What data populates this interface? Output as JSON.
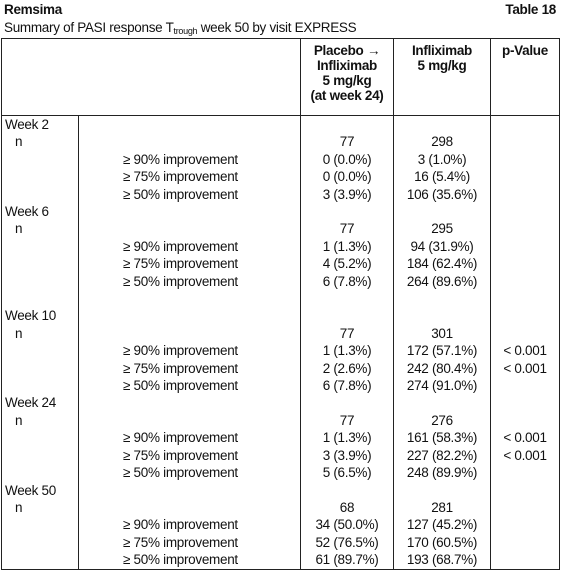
{
  "header": {
    "title": "Remsima",
    "table_number": "Table 18",
    "subtitle": {
      "before": "Summary of PASI response T",
      "subscript": "trough",
      "after": " week 50 by visit EXPRESS"
    }
  },
  "table": {
    "columns": [
      [
        "Placebo →",
        "Infliximab",
        "5 mg/kg",
        "(at week 24)"
      ],
      [
        "Infliximab",
        "5 mg/kg"
      ],
      [
        "p-Value"
      ]
    ],
    "groups": [
      {
        "label": "Week 2",
        "n_label": "n",
        "n": [
          "77",
          "298"
        ],
        "rows": [
          {
            "label": "≥ 90% improvement",
            "placebo": "0 (0.0%)",
            "infliximab": "3 (1.0%)"
          },
          {
            "label": "≥ 75% improvement",
            "placebo": "0 (0.0%)",
            "infliximab": "16 (5.4%)"
          },
          {
            "label": "≥ 50% improvement",
            "placebo": "3 (3.9%)",
            "infliximab": "106 (35.6%)"
          }
        ]
      },
      {
        "label": "Week 6",
        "n_label": "n",
        "n": [
          "77",
          "295"
        ],
        "rows": [
          {
            "label": "≥ 90% improvement",
            "placebo": "1 (1.3%)",
            "infliximab": "94 (31.9%)"
          },
          {
            "label": "≥ 75% improvement",
            "placebo": "4 (5.2%)",
            "infliximab": "184 (62.4%)"
          },
          {
            "label": "≥ 50% improvement",
            "placebo": "6 (7.8%)",
            "infliximab": "264 (89.6%)"
          }
        ]
      },
      {
        "label": "Week 10",
        "n_label": "n",
        "n": [
          "77",
          "301"
        ],
        "rows": [
          {
            "label": "≥ 90% improvement",
            "placebo": "1 (1.3%)",
            "infliximab": "172 (57.1%)",
            "p": "< 0.001"
          },
          {
            "label": "≥ 75% improvement",
            "placebo": "2 (2.6%)",
            "infliximab": "242 (80.4%)",
            "p": "< 0.001"
          },
          {
            "label": "≥ 50% improvement",
            "placebo": "6 (7.8%)",
            "infliximab": "274 (91.0%)"
          }
        ]
      },
      {
        "label": "Week 24",
        "n_label": "n",
        "n": [
          "77",
          "276"
        ],
        "rows": [
          {
            "label": "≥ 90% improvement",
            "placebo": "1 (1.3%)",
            "infliximab": "161 (58.3%)",
            "p": "< 0.001"
          },
          {
            "label": "≥ 75% improvement",
            "placebo": "3 (3.9%)",
            "infliximab": "227 (82.2%)",
            "p": "< 0.001"
          },
          {
            "label": "≥ 50% improvement",
            "placebo": "5 (6.5%)",
            "infliximab": "248 (89.9%)"
          }
        ]
      },
      {
        "label": "Week 50",
        "n_label": "n",
        "n": [
          "68",
          "281"
        ],
        "rows": [
          {
            "label": "≥ 90% improvement",
            "placebo": "34 (50.0%)",
            "infliximab": "127 (45.2%)"
          },
          {
            "label": "≥ 75% improvement",
            "placebo": "52 (76.5%)",
            "infliximab": "170 (60.5%)"
          },
          {
            "label": "≥ 50% improvement",
            "placebo": "61 (89.7%)",
            "infliximab": "193 (68.7%)"
          }
        ]
      }
    ]
  }
}
